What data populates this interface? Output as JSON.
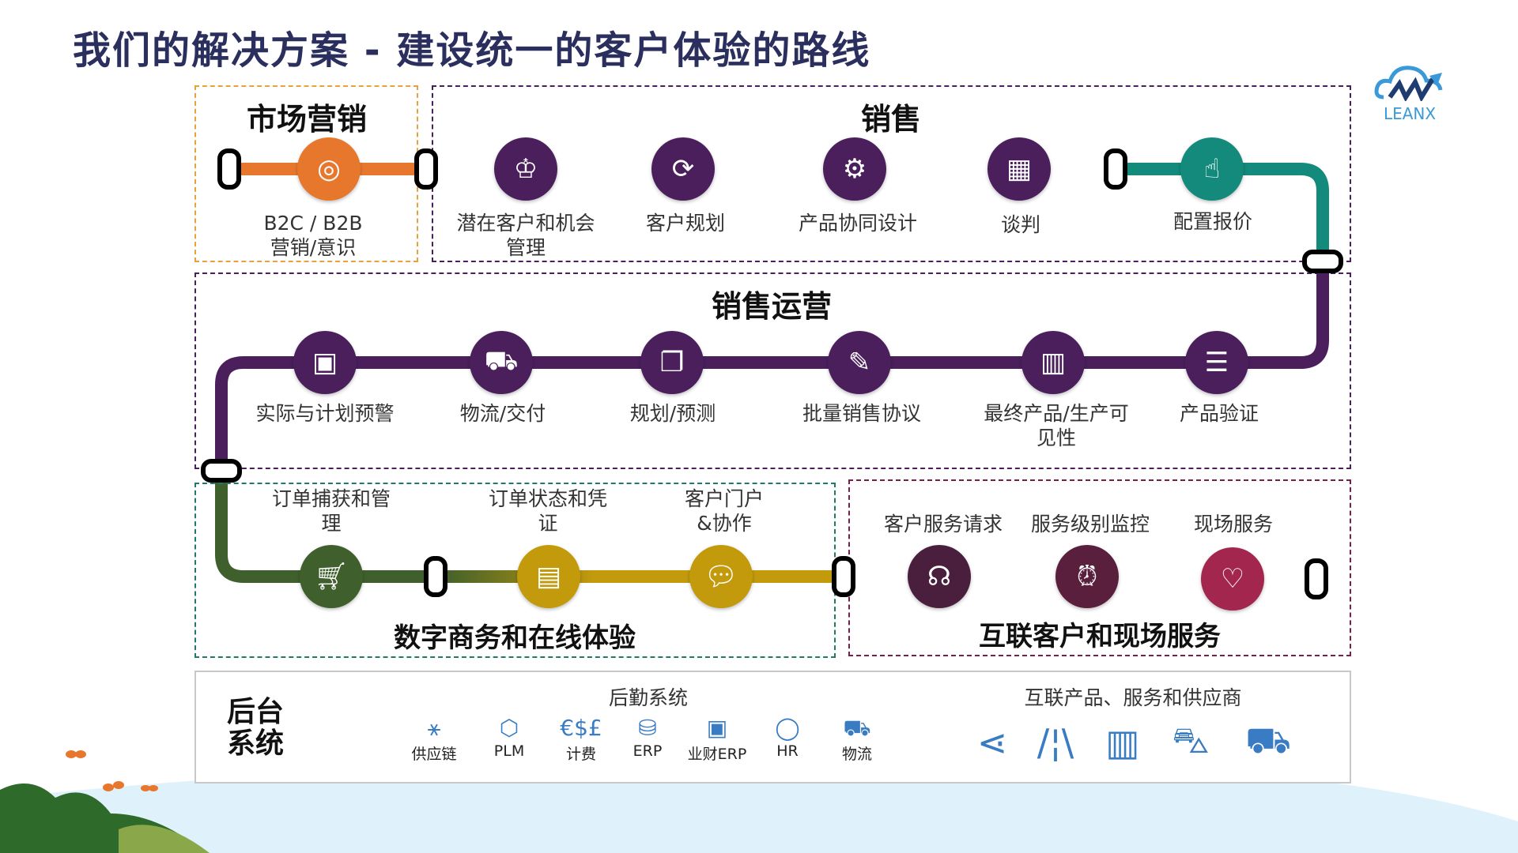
{
  "title": "我们的解决方案 - 建设统一的客户体验的路线",
  "logo": {
    "text": "LEANX",
    "color": "#3a9ad9"
  },
  "colors": {
    "marketing": "#e8772e",
    "sales": "#4a1f5c",
    "cpq": "#138a7c",
    "digital": "#3f5f2c",
    "digital_accent": "#c39a0c",
    "service": "#5b1f3e",
    "service_accent": "#a3264f"
  },
  "marketing": {
    "title": "市场营销",
    "items": [
      {
        "label1": "B2C / B2B",
        "label2": "营销/意识",
        "icon": "target-person-icon"
      }
    ]
  },
  "sales": {
    "title": "销售",
    "items": [
      {
        "label1": "潜在客户和机会",
        "label2": "管理",
        "icon": "crown-icon"
      },
      {
        "label1": "客户规划",
        "label2": "",
        "icon": "user-cycle-icon"
      },
      {
        "label1": "产品协同设计",
        "label2": "",
        "icon": "gear-search-icon"
      },
      {
        "label1": "谈判",
        "label2": "",
        "icon": "grid-mail-icon"
      },
      {
        "label1": "配置报价",
        "label2": "",
        "icon": "gear-hand-icon"
      }
    ]
  },
  "sales_ops": {
    "title": "销售运营",
    "items": [
      {
        "label1": "实际与计划预警",
        "label2": "",
        "icon": "money-icon"
      },
      {
        "label1": "物流/交付",
        "label2": "",
        "icon": "truck-icon"
      },
      {
        "label1": "规划/预测",
        "label2": "",
        "icon": "documents-icon"
      },
      {
        "label1": "批量销售协议",
        "label2": "",
        "icon": "sign-icon"
      },
      {
        "label1": "最终产品/生产可",
        "label2": "见性",
        "icon": "factory-icon"
      },
      {
        "label1": "产品验证",
        "label2": "",
        "icon": "checklist-icon"
      }
    ]
  },
  "digital": {
    "title": "数字商务和在线体验",
    "items": [
      {
        "label1": "订单捕获和管",
        "label2": "理",
        "icon": "cart-icon"
      },
      {
        "label1": "订单状态和凭",
        "label2": "证",
        "icon": "document-icon"
      },
      {
        "label1": "客户门户",
        "label2": "&协作",
        "icon": "chat-icon"
      }
    ]
  },
  "service": {
    "title": "互联客户和现场服务",
    "items": [
      {
        "label1": "客户服务请求",
        "icon": "headset-icon"
      },
      {
        "label1": "服务级别监控",
        "icon": "alarm-clock-icon"
      },
      {
        "label1": "现场服务",
        "icon": "location-heart-icon"
      }
    ]
  },
  "backend": {
    "title1": "后台",
    "title2": "系统",
    "logistics_title": "后勤系统",
    "logistics": [
      {
        "label": "供应链",
        "icon": "network-icon"
      },
      {
        "label": "PLM",
        "icon": "box-icon"
      },
      {
        "label": "计费",
        "icon": "currency-icon"
      },
      {
        "label": "ERP",
        "icon": "database-icon"
      },
      {
        "label": "业财ERP",
        "icon": "cash-icon"
      },
      {
        "label": "HR",
        "icon": "person-icon"
      },
      {
        "label": "物流",
        "icon": "truck-icon"
      }
    ],
    "connected_title": "互联产品、服务和供应商",
    "connected": [
      {
        "icon": "share-icon"
      },
      {
        "icon": "road-icon"
      },
      {
        "icon": "factory-icon"
      },
      {
        "icon": "tractor-icon"
      },
      {
        "icon": "truck-icon"
      }
    ]
  }
}
